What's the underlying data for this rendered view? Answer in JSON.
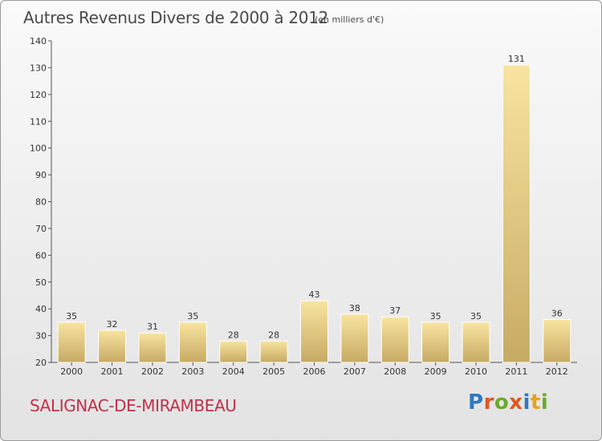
{
  "chart_data": {
    "type": "bar",
    "title": "Autres Revenus Divers de 2000 à 2012",
    "subtitle": "(en milliers d'€)",
    "categories": [
      "2000",
      "2001",
      "2002",
      "2003",
      "2004",
      "2005",
      "2006",
      "2007",
      "2008",
      "2009",
      "2010",
      "2011",
      "2012"
    ],
    "values": [
      35,
      32,
      31,
      35,
      28,
      28,
      43,
      38,
      37,
      35,
      35,
      131,
      36
    ],
    "ylim": [
      20,
      140
    ],
    "yticks": [
      20,
      30,
      40,
      50,
      60,
      70,
      80,
      90,
      100,
      110,
      120,
      130,
      140
    ],
    "grid": false,
    "colors": {
      "bar_light": "#f8e4a0",
      "bar_dark": "#c7aa64",
      "axis": "#555555"
    }
  },
  "footer": {
    "commune": "SALIGNAC-DE-MIRAMBEAU",
    "logo_letters": [
      {
        "char": "P",
        "color": "#2f78c4"
      },
      {
        "char": "r",
        "color": "#e0561f"
      },
      {
        "char": "o",
        "color": "#6aaa2a"
      },
      {
        "char": "x",
        "color": "#e0561f"
      },
      {
        "char": "i",
        "color": "#2f78c4"
      },
      {
        "char": "t",
        "color": "#e8a21a"
      },
      {
        "char": "i",
        "color": "#6aaa2a"
      }
    ]
  }
}
